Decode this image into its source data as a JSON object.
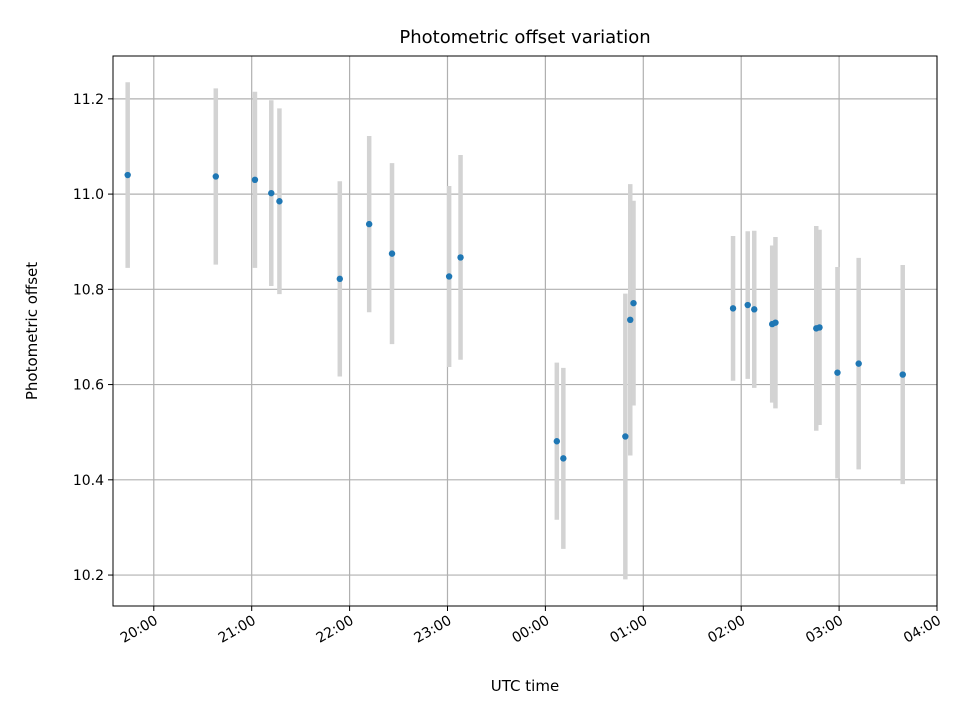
{
  "chart_data": {
    "type": "scatter",
    "title": "Photometric offset variation",
    "xlabel": "UTC time",
    "ylabel": "Photometric offset",
    "x_axis_type": "time",
    "x_tick_labels": [
      "20:00",
      "21:00",
      "22:00",
      "23:00",
      "00:00",
      "01:00",
      "02:00",
      "03:00",
      "04:00"
    ],
    "y_ticks": [
      10.2,
      10.4,
      10.6,
      10.8,
      11.0,
      11.2
    ],
    "y_tick_labels": [
      "10.2",
      "10.4",
      "10.6",
      "10.8",
      "11.0",
      "11.2"
    ],
    "xlim": [
      "19:35",
      "04:00"
    ],
    "ylim": [
      10.135,
      11.29
    ],
    "grid": true,
    "legend": "none",
    "point_color": "#1f77b4",
    "errorbar_color": "#d3d3d3",
    "points": [
      {
        "x": "19:44",
        "y": 11.04,
        "err": 0.195
      },
      {
        "x": "20:38",
        "y": 11.037,
        "err": 0.185
      },
      {
        "x": "21:02",
        "y": 11.03,
        "err": 0.185
      },
      {
        "x": "21:12",
        "y": 11.002,
        "err": 0.195
      },
      {
        "x": "21:17",
        "y": 10.985,
        "err": 0.195
      },
      {
        "x": "21:54",
        "y": 10.822,
        "err": 0.205
      },
      {
        "x": "22:12",
        "y": 10.937,
        "err": 0.185
      },
      {
        "x": "22:26",
        "y": 10.875,
        "err": 0.19
      },
      {
        "x": "23:01",
        "y": 10.827,
        "err": 0.19
      },
      {
        "x": "23:08",
        "y": 10.867,
        "err": 0.215
      },
      {
        "x": "00:07",
        "y": 10.481,
        "err": 0.165
      },
      {
        "x": "00:11",
        "y": 10.445,
        "err": 0.19
      },
      {
        "x": "00:49",
        "y": 10.491,
        "err": 0.3
      },
      {
        "x": "00:52",
        "y": 10.736,
        "err": 0.285
      },
      {
        "x": "00:54",
        "y": 10.771,
        "err": 0.215
      },
      {
        "x": "01:55",
        "y": 10.76,
        "err": 0.152
      },
      {
        "x": "02:04",
        "y": 10.767,
        "err": 0.155
      },
      {
        "x": "02:08",
        "y": 10.758,
        "err": 0.165
      },
      {
        "x": "02:19",
        "y": 10.727,
        "err": 0.165
      },
      {
        "x": "02:21",
        "y": 10.73,
        "err": 0.18
      },
      {
        "x": "02:46",
        "y": 10.718,
        "err": 0.215
      },
      {
        "x": "02:48",
        "y": 10.72,
        "err": 0.205
      },
      {
        "x": "02:59",
        "y": 10.625,
        "err": 0.222
      },
      {
        "x": "03:12",
        "y": 10.644,
        "err": 0.222
      },
      {
        "x": "03:39",
        "y": 10.621,
        "err": 0.23
      }
    ]
  }
}
